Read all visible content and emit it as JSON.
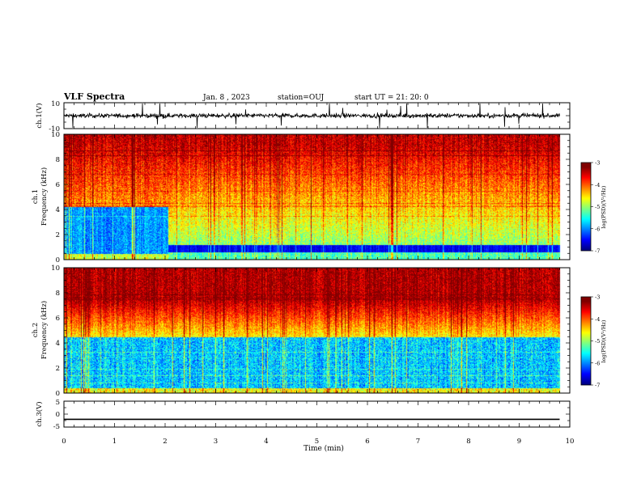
{
  "header": {
    "title": "VLF Spectra",
    "date": "Jan. 8 , 2023",
    "station": "station=OUJ",
    "start": "start UT =  21: 20: 0"
  },
  "chart_data": [
    {
      "type": "line",
      "name": "ch1-waveform",
      "ylabel": "ch.1(V)",
      "ylim": [
        -10,
        10
      ],
      "yticks": [
        "10",
        "-10"
      ],
      "xlim": [
        0,
        10
      ],
      "baseline_v": 0
    },
    {
      "type": "heatmap",
      "name": "ch1-spectrogram",
      "ylabel": "ch.1\nFrequency (kHz)",
      "ylabel_line1": "ch.1",
      "ylabel_line2": "Frequency (kHz)",
      "ylim": [
        0,
        10
      ],
      "yticks": [
        "0",
        "2",
        "4",
        "6",
        "8",
        "10"
      ],
      "xlim": [
        0,
        10
      ],
      "data_end_min": 9.8,
      "colorbar": {
        "label": "log(PSD)(V²/Hz)",
        "ticks": [
          "-3",
          "-4",
          "-5",
          "-6",
          "-7"
        ],
        "range": [
          -7,
          -3
        ]
      },
      "features": {
        "transition_min": 2.05,
        "early_quiet_top_khz": 4.2,
        "late_band_low_khz": 0.6,
        "late_band_high_khz": 1.2
      }
    },
    {
      "type": "heatmap",
      "name": "ch2-spectrogram",
      "ylabel_line1": "ch.2",
      "ylabel_line2": "Frequency (kHz)",
      "ylim": [
        0,
        10
      ],
      "yticks": [
        "0",
        "2",
        "4",
        "6",
        "8",
        "10"
      ],
      "xlim": [
        0,
        10
      ],
      "data_end_min": 9.8,
      "colorbar": {
        "label": "log(PSD)(V²/Hz)",
        "ticks": [
          "-3",
          "-4",
          "-5",
          "-6",
          "-7"
        ],
        "range": [
          -7,
          -3
        ]
      }
    },
    {
      "type": "line",
      "name": "ch3-waveform",
      "ylabel": "ch.3(V)",
      "ylim": [
        -5,
        5
      ],
      "yticks": [
        "5",
        "0",
        "-5"
      ],
      "xlim": [
        0,
        10
      ],
      "xlabel": "Time (min)",
      "xticks": [
        "0",
        "1",
        "2",
        "3",
        "4",
        "5",
        "6",
        "7",
        "8",
        "9",
        "10"
      ],
      "level_v": -2
    }
  ]
}
